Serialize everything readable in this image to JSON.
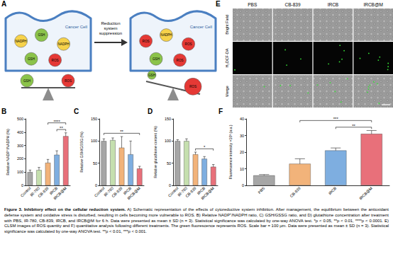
{
  "panel_a": {
    "label": "A",
    "cell_label": "Cancer Cell",
    "arrow_label": "Reduction system suppression",
    "before": {
      "molecules": [
        "NADPH",
        "GSH",
        "NADPH",
        "GSH",
        "ROS"
      ],
      "balance": [
        "GSH",
        "ROS"
      ]
    },
    "after": {
      "molecules": [
        "ROS",
        "NADPH",
        "ROS",
        "GSH",
        "ROS"
      ],
      "balance": [
        "GSH",
        "ROS"
      ]
    }
  },
  "panel_e": {
    "label": "E",
    "columns": [
      "PBS",
      "CB-839",
      "IRCB",
      "IRCB@M"
    ],
    "rows": [
      "Bright Field",
      "H₂DCF-DA",
      "Merge"
    ]
  },
  "chart_data": [
    {
      "panel": "B",
      "type": "bar",
      "ylabel": "Relative NADP⁺/NADPH (%)",
      "categories": [
        "Control",
        "IR-780",
        "CB-839",
        "IRCB",
        "IRCB@M"
      ],
      "values": [
        100,
        115,
        170,
        230,
        370
      ],
      "errors": [
        15,
        20,
        25,
        30,
        25
      ],
      "colors": [
        "#a6a6a6",
        "#c5dfae",
        "#f2b37a",
        "#7eaee0",
        "#e8707a"
      ],
      "ylim": [
        0,
        500
      ],
      "yticks": [
        0,
        100,
        200,
        300,
        400,
        500
      ],
      "significance": [
        {
          "from": "IRCB",
          "to": "IRCB@M",
          "label": "**"
        },
        {
          "from": "CB-839",
          "to": "IRCB@M",
          "label": "****"
        }
      ]
    },
    {
      "panel": "C",
      "type": "bar",
      "ylabel": "Relative GSH/GSSG (%)",
      "categories": [
        "Control",
        "IR-780",
        "CB-839",
        "IRCB",
        "IRCB@M"
      ],
      "values": [
        100,
        102,
        85,
        70,
        38
      ],
      "errors": [
        5,
        5,
        25,
        30,
        5
      ],
      "colors": [
        "#a6a6a6",
        "#c5dfae",
        "#f2b37a",
        "#7eaee0",
        "#e8707a"
      ],
      "ylim": [
        0,
        150
      ],
      "yticks": [
        0,
        50,
        100,
        150
      ],
      "significance": [
        {
          "from": "Control",
          "to": "IRCB@M",
          "label": "**"
        }
      ]
    },
    {
      "panel": "D",
      "type": "bar",
      "ylabel": "Relative glutathione content (%)",
      "categories": [
        "Control",
        "IR-780",
        "CB-839",
        "IRCB",
        "IRCB@M"
      ],
      "values": [
        100,
        100,
        70,
        60,
        42
      ],
      "errors": [
        3,
        5,
        5,
        5,
        5
      ],
      "colors": [
        "#a6a6a6",
        "#c5dfae",
        "#f2b37a",
        "#7eaee0",
        "#e8707a"
      ],
      "ylim": [
        0,
        150
      ],
      "yticks": [
        0,
        50,
        100,
        150
      ],
      "significance": [
        {
          "from": "CB-839",
          "to": "IRCB@M",
          "label": "*"
        }
      ]
    },
    {
      "panel": "F",
      "type": "bar",
      "ylabel": "Fluorescence intensity ×10³ (a.u.)",
      "categories": [
        "PBS",
        "CB-839",
        "IRCB",
        "IRCB@M"
      ],
      "values": [
        6,
        13,
        21,
        31
      ],
      "errors": [
        0.5,
        3,
        1.5,
        2
      ],
      "colors": [
        "#a6a6a6",
        "#f2b37a",
        "#7eaee0",
        "#e8707a"
      ],
      "ylim": [
        0,
        40
      ],
      "yticks": [
        0,
        10,
        20,
        30,
        40
      ],
      "significance": [
        {
          "from": "IRCB",
          "to": "IRCB@M",
          "label": "**"
        },
        {
          "from": "CB-839",
          "to": "IRCB@M",
          "label": "***"
        }
      ]
    }
  ],
  "caption": {
    "label": "Figure 3.",
    "title": "Inhibitory effect on the cellular reduction system.",
    "text": "A) Schematic representation of the effects of cytoreductive system inhibition. After management, the equilibrium between the antioxidant defense system and oxidative stress is disturbed, resulting in cells becoming more vulnerable to ROS. B) Relative NADP⁺/NADPH ratio, C) GSH/GSSG ratio, and D) glutathione concentration after treatment with PBS, IR-780, CB-839, IRCB, and IRCB@M for 6 h. Data were presented as mean ± SD (n = 3). Statistical significance was calculated by one-way ANOVA test. *p < 0.05, **p < 0.01, ****p < 0.0001. E) CLSM images of ROS quantity and F) quantitative analysis following different treatments. The green fluorescence represents ROS. Scale bar = 100 µm. Data were presented as mean ± SD (n = 3). Statistical significance was calculated by one-way ANOVA test. **p < 0.01, ***p < 0.001."
  }
}
